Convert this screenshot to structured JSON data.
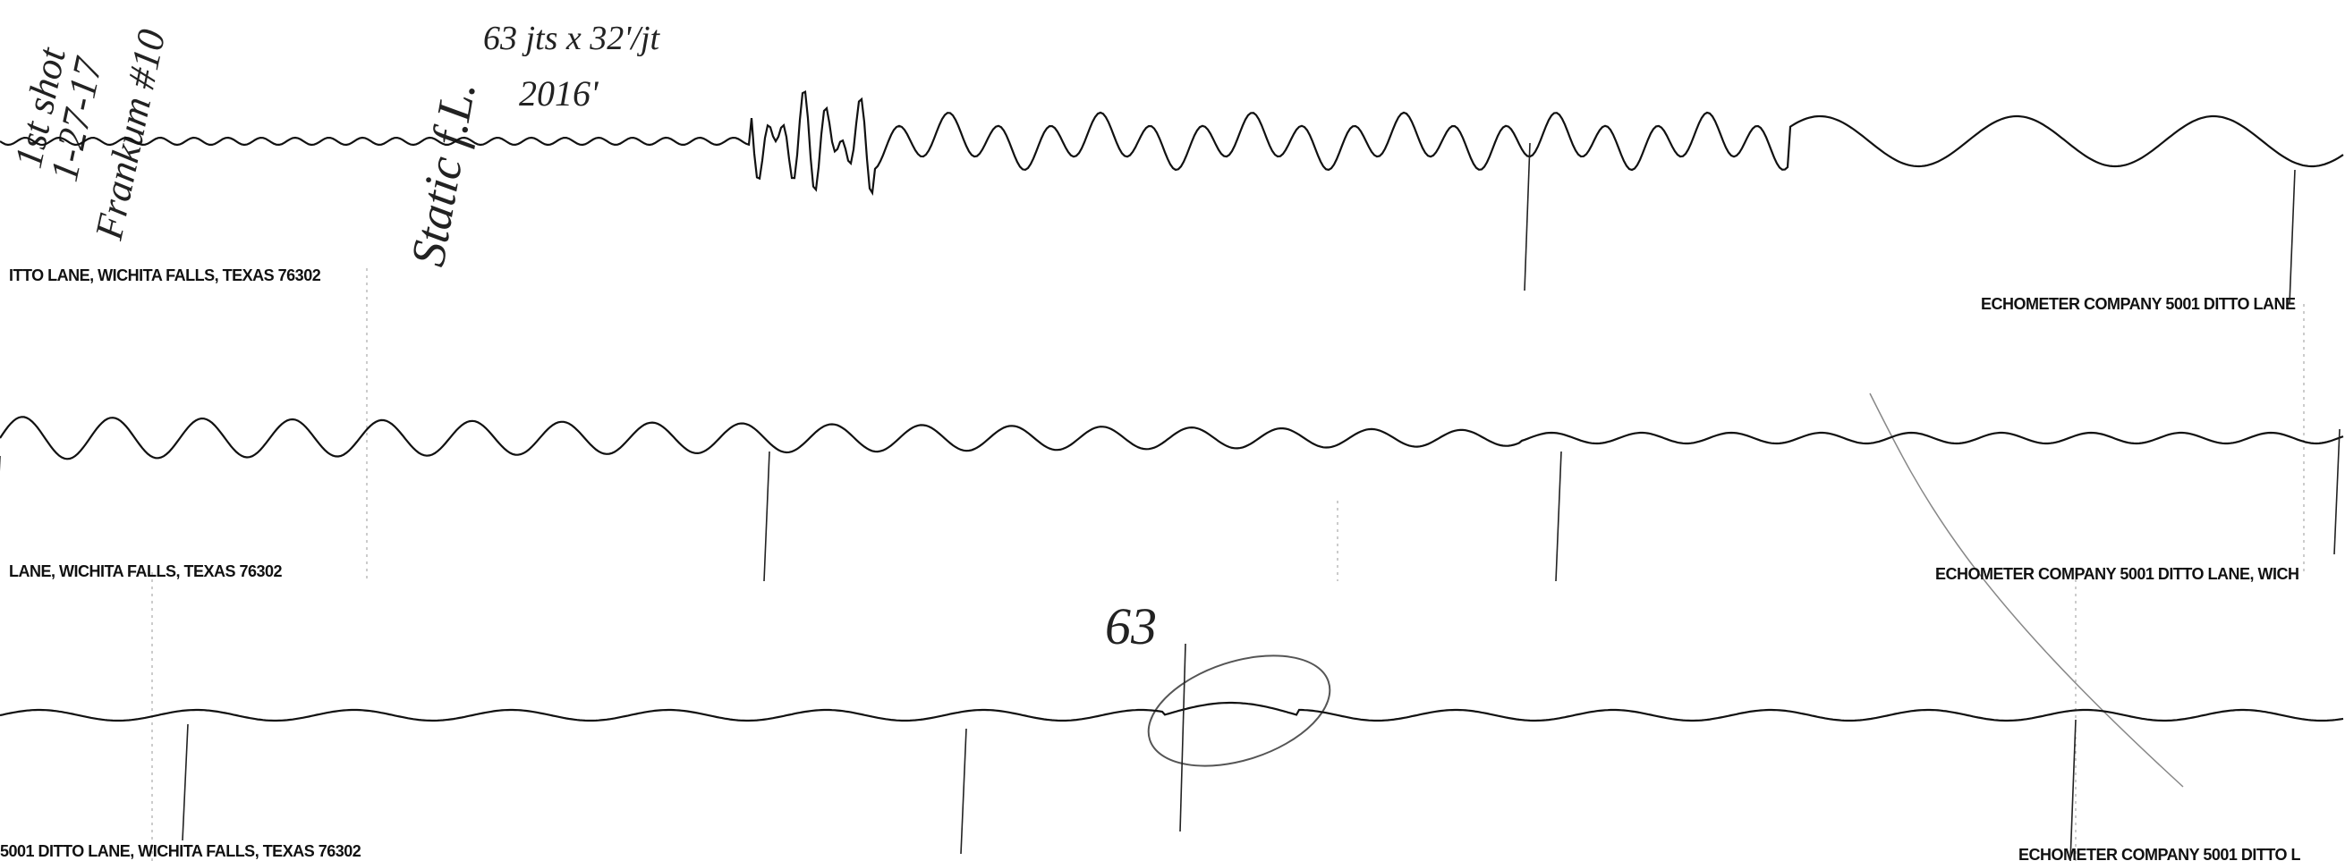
{
  "strip": {
    "notes": {
      "shot": "1st shot",
      "date": "1-27-17",
      "well": "Frankum #10",
      "static": "Static f.L.",
      "joints": "63 jts x 32'/jt",
      "depth": "2016'",
      "count": "63"
    },
    "rows": [
      {
        "left_label": "ITTO LANE, WICHITA FALLS, TEXAS 76302",
        "right_label": "ECHOMETER COMPANY  5001 DITTO LANE"
      },
      {
        "left_label": "LANE, WICHITA FALLS, TEXAS 76302",
        "right_label": "ECHOMETER COMPANY  5001 DITTO LANE, WICH"
      },
      {
        "left_label": "5001 DITTO LANE, WICHITA FALLS, TEXAS 76302",
        "right_label": "ECHOMETER COMPANY  5001 DITTO L"
      }
    ]
  }
}
